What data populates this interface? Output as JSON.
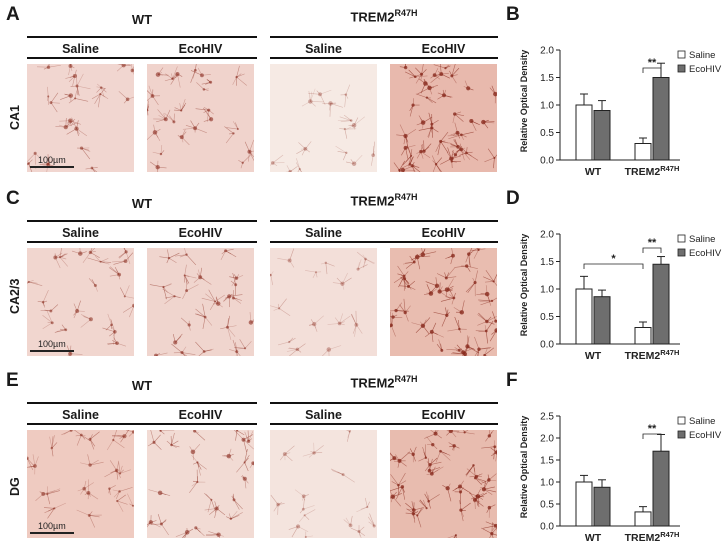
{
  "rows": [
    {
      "letter": "A",
      "chart_letter": "B",
      "region": "CA1",
      "group_wt": "WT",
      "group_trem_base": "TREM2",
      "group_trem_sup": "R47H",
      "cond_saline": "Saline",
      "cond_ecohiv": "EcoHIV",
      "scale_label": "100µm"
    },
    {
      "letter": "C",
      "chart_letter": "D",
      "region": "CA2/3",
      "group_wt": "WT",
      "group_trem_base": "TREM2",
      "group_trem_sup": "R47H",
      "cond_saline": "Saline",
      "cond_ecohiv": "EcoHIV",
      "scale_label": "100µm"
    },
    {
      "letter": "E",
      "chart_letter": "F",
      "region": "DG",
      "group_wt": "WT",
      "group_trem_base": "TREM2",
      "group_trem_sup": "R47H",
      "cond_saline": "Saline",
      "cond_ecohiv": "EcoHIV",
      "scale_label": "100µm"
    }
  ],
  "tile_tints": {
    "row0": [
      "#f1d6d0",
      "#f0d3cc",
      "#f6eae4",
      "#e8b9ad"
    ],
    "row1": [
      "#f1d6cf",
      "#f0d5ce",
      "#f3dfd9",
      "#e9bdb0"
    ],
    "row2": [
      "#efcbc1",
      "#f2dbd4",
      "#f4e4de",
      "#e8bcaf"
    ]
  },
  "colors": {
    "saline": "#ffffff",
    "ecohiv": "#6e6e6e",
    "axis": "#222222",
    "stain": "#8a2c1f"
  },
  "chart_data": [
    {
      "type": "bar",
      "ylabel": "Relative Optical Density",
      "categories": [
        "WT",
        "TREM2"
      ],
      "category_sup": [
        "",
        "R47H"
      ],
      "ylim": [
        0,
        2.0
      ],
      "yticks": [
        "0.0",
        "0.5",
        "1.0",
        "1.5",
        "2.0"
      ],
      "legend": "top-right",
      "series": [
        {
          "name": "Saline",
          "values": [
            1.0,
            0.3
          ],
          "errors": [
            0.2,
            0.1
          ]
        },
        {
          "name": "EcoHIV",
          "values": [
            0.9,
            1.5
          ],
          "errors": [
            0.18,
            0.26
          ]
        }
      ],
      "significance": [
        {
          "label": "**",
          "group": 1,
          "type": "within"
        }
      ]
    },
    {
      "type": "bar",
      "ylabel": "Relative Optical Density",
      "categories": [
        "WT",
        "TREM2"
      ],
      "category_sup": [
        "",
        "R47H"
      ],
      "ylim": [
        0,
        2.0
      ],
      "yticks": [
        "0.0",
        "0.5",
        "1.0",
        "1.5",
        "2.0"
      ],
      "legend": "top-right",
      "series": [
        {
          "name": "Saline",
          "values": [
            1.0,
            0.3
          ],
          "errors": [
            0.23,
            0.1
          ]
        },
        {
          "name": "EcoHIV",
          "values": [
            0.86,
            1.45
          ],
          "errors": [
            0.12,
            0.14
          ]
        }
      ],
      "significance": [
        {
          "label": "*",
          "group": 0,
          "type": "saline-saline"
        },
        {
          "label": "**",
          "group": 1,
          "type": "within"
        }
      ]
    },
    {
      "type": "bar",
      "ylabel": "Relative Optical Density",
      "categories": [
        "WT",
        "TREM2"
      ],
      "category_sup": [
        "",
        "R47H"
      ],
      "ylim": [
        0,
        2.5
      ],
      "yticks": [
        "0.0",
        "0.5",
        "1.0",
        "1.5",
        "2.0",
        "2.5"
      ],
      "legend": "top-right",
      "series": [
        {
          "name": "Saline",
          "values": [
            1.0,
            0.32
          ],
          "errors": [
            0.15,
            0.12
          ]
        },
        {
          "name": "EcoHIV",
          "values": [
            0.88,
            1.7
          ],
          "errors": [
            0.17,
            0.38
          ]
        }
      ],
      "significance": [
        {
          "label": "**",
          "group": 1,
          "type": "within"
        }
      ]
    }
  ]
}
